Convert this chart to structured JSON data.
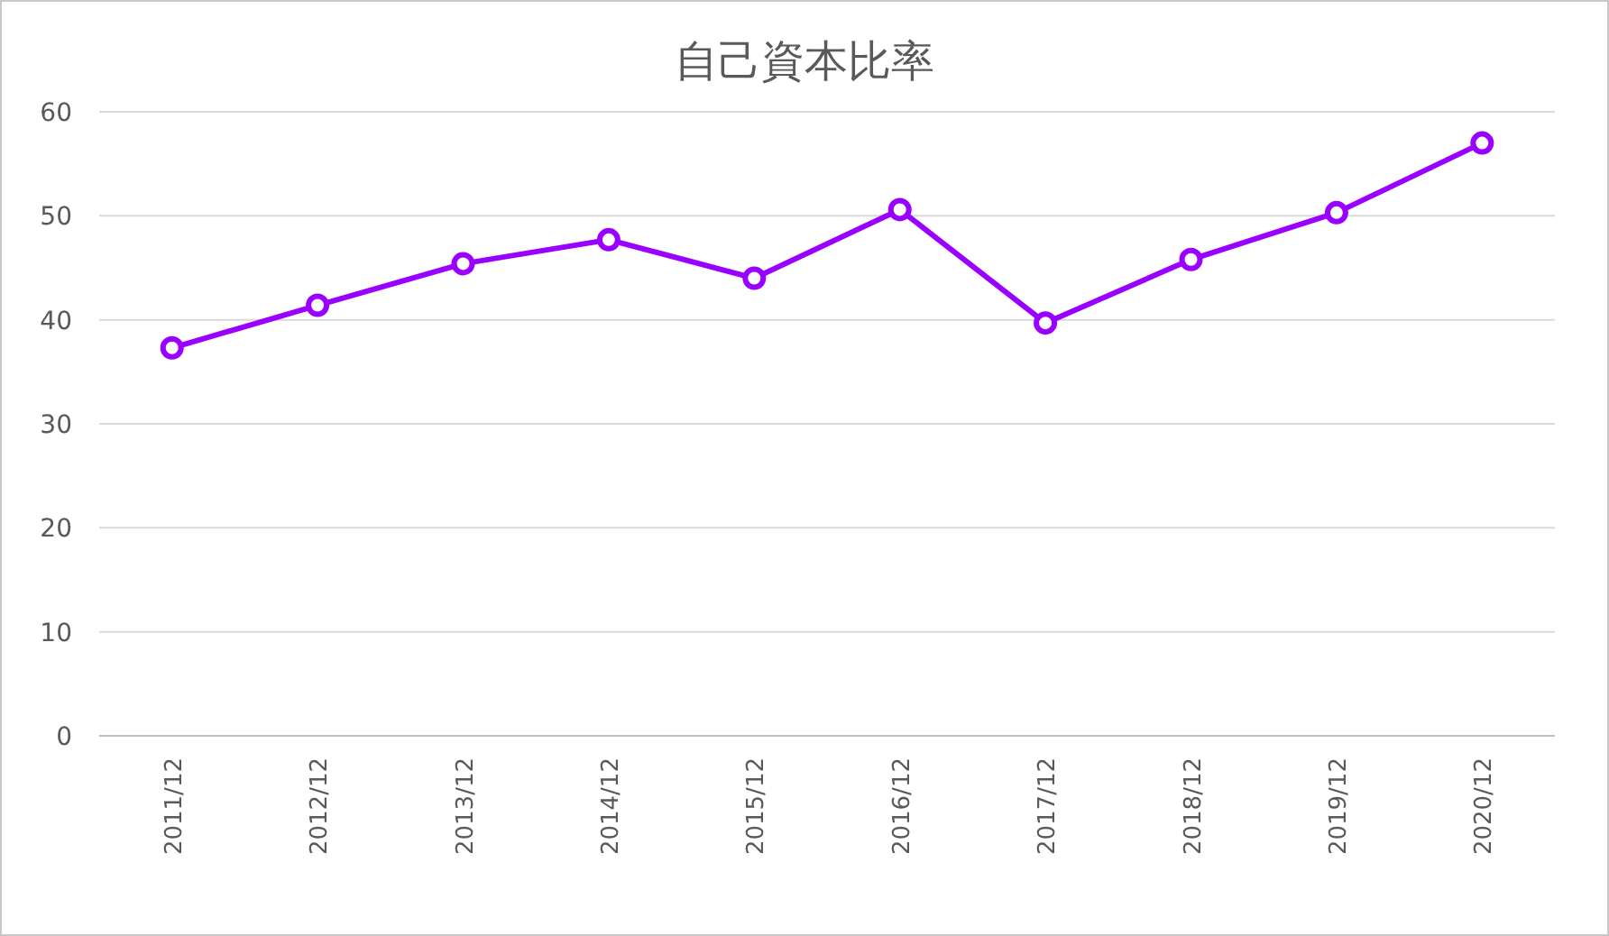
{
  "chart_data": {
    "type": "line",
    "title": "自己資本比率",
    "categories": [
      "2011/12",
      "2012/12",
      "2013/12",
      "2014/12",
      "2015/12",
      "2016/12",
      "2017/12",
      "2018/12",
      "2019/12",
      "2020/12"
    ],
    "series": [
      {
        "color": "#9900ff",
        "values": [
          37.3,
          41.4,
          45.4,
          47.7,
          44.0,
          50.6,
          39.7,
          45.8,
          50.3,
          57.0
        ]
      }
    ],
    "ylim": [
      0,
      60
    ],
    "yticks": [
      0,
      10,
      20,
      30,
      40,
      50,
      60
    ],
    "grid": "y",
    "marker": "circle",
    "line_style": "solid"
  }
}
